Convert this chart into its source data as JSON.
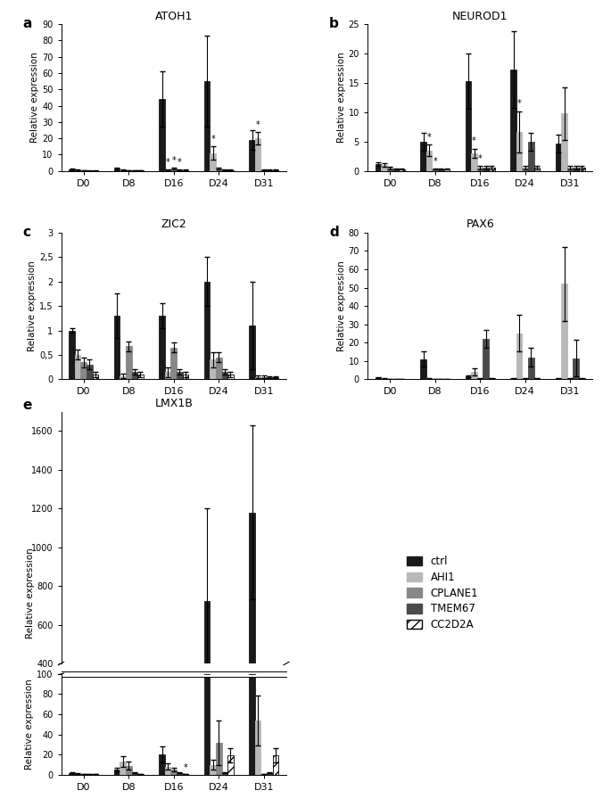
{
  "panels": {
    "a": {
      "title": "ATOH1",
      "ylim": [
        0,
        90
      ],
      "yticks": [
        0,
        10,
        20,
        30,
        40,
        50,
        60,
        70,
        80,
        90
      ],
      "timepoints": [
        "D0",
        "D8",
        "D16",
        "D24",
        "D31"
      ],
      "bars": {
        "ctrl": [
          1.0,
          1.5,
          44.0,
          55.0,
          19.0
        ],
        "AHI1": [
          0.5,
          0.5,
          0.5,
          11.0,
          20.0
        ],
        "CPLANE1": [
          0.3,
          0.5,
          1.5,
          1.5,
          0.5
        ],
        "TMEM67": [
          0.2,
          0.3,
          0.5,
          0.5,
          0.5
        ],
        "CC2D2A": [
          0.2,
          0.3,
          0.5,
          0.5,
          0.5
        ]
      },
      "errors": {
        "ctrl": [
          0.3,
          0.5,
          17.0,
          28.0,
          6.0
        ],
        "AHI1": [
          0.2,
          0.2,
          0.3,
          4.0,
          4.0
        ],
        "CPLANE1": [
          0.1,
          0.1,
          0.3,
          0.3,
          0.2
        ],
        "TMEM67": [
          0.1,
          0.1,
          0.2,
          0.2,
          0.2
        ],
        "CC2D2A": [
          0.1,
          0.1,
          0.2,
          0.2,
          0.2
        ]
      },
      "stars": {
        "AHI1": [
          false,
          false,
          true,
          true,
          true
        ],
        "CPLANE1": [
          false,
          false,
          true,
          false,
          false
        ],
        "TMEM67": [
          false,
          false,
          true,
          false,
          false
        ],
        "CC2D2A": [
          false,
          false,
          false,
          false,
          false
        ]
      }
    },
    "b": {
      "title": "NEUROD1",
      "ylim": [
        0,
        25
      ],
      "yticks": [
        0,
        5,
        10,
        15,
        20,
        25
      ],
      "timepoints": [
        "D0",
        "D8",
        "D16",
        "D24",
        "D31"
      ],
      "bars": {
        "ctrl": [
          1.2,
          5.0,
          15.3,
          17.3,
          4.7
        ],
        "AHI1": [
          1.0,
          3.5,
          3.0,
          6.7,
          9.8
        ],
        "CPLANE1": [
          0.5,
          0.3,
          0.5,
          0.5,
          0.5
        ],
        "TMEM67": [
          0.3,
          0.3,
          0.5,
          5.0,
          0.5
        ],
        "CC2D2A": [
          0.3,
          0.3,
          0.5,
          0.5,
          0.5
        ]
      },
      "errors": {
        "ctrl": [
          0.3,
          1.5,
          4.7,
          6.5,
          1.5
        ],
        "AHI1": [
          0.3,
          1.0,
          0.8,
          3.5,
          4.5
        ],
        "CPLANE1": [
          0.2,
          0.1,
          0.3,
          0.3,
          0.3
        ],
        "TMEM67": [
          0.1,
          0.1,
          0.3,
          1.5,
          0.3
        ],
        "CC2D2A": [
          0.1,
          0.1,
          0.3,
          0.3,
          0.3
        ]
      },
      "stars": {
        "AHI1": [
          false,
          true,
          true,
          true,
          false
        ],
        "CPLANE1": [
          false,
          true,
          true,
          false,
          false
        ],
        "TMEM67": [
          false,
          false,
          false,
          false,
          false
        ],
        "CC2D2A": [
          false,
          false,
          false,
          false,
          false
        ]
      }
    },
    "c": {
      "title": "ZIC2",
      "ylim": [
        0,
        3
      ],
      "yticks": [
        0,
        0.5,
        1.0,
        1.5,
        2.0,
        2.5,
        3.0
      ],
      "ytick_labels": [
        "0",
        "0,5",
        "1",
        "1,5",
        "2",
        "2,5",
        "3"
      ],
      "timepoints": [
        "D0",
        "D8",
        "D16",
        "D24",
        "D31"
      ],
      "bars": {
        "ctrl": [
          1.0,
          1.3,
          1.3,
          2.0,
          1.1
        ],
        "AHI1": [
          0.5,
          0.07,
          0.15,
          0.4,
          0.05
        ],
        "CPLANE1": [
          0.35,
          0.68,
          0.65,
          0.45,
          0.05
        ],
        "TMEM67": [
          0.3,
          0.15,
          0.15,
          0.15,
          0.05
        ],
        "CC2D2A": [
          0.1,
          0.1,
          0.1,
          0.1,
          0.05
        ]
      },
      "errors": {
        "ctrl": [
          0.05,
          0.45,
          0.25,
          0.5,
          0.9
        ],
        "AHI1": [
          0.1,
          0.05,
          0.1,
          0.15,
          0.03
        ],
        "CPLANE1": [
          0.1,
          0.1,
          0.1,
          0.1,
          0.03
        ],
        "TMEM67": [
          0.1,
          0.05,
          0.05,
          0.05,
          0.02
        ],
        "CC2D2A": [
          0.05,
          0.05,
          0.05,
          0.05,
          0.02
        ]
      },
      "stars": {}
    },
    "d": {
      "title": "PAX6",
      "ylim": [
        0,
        80
      ],
      "yticks": [
        0,
        10,
        20,
        30,
        40,
        50,
        60,
        70,
        80
      ],
      "timepoints": [
        "D0",
        "D8",
        "D16",
        "D24",
        "D31"
      ],
      "bars": {
        "ctrl": [
          1.0,
          11.0,
          1.5,
          0.5,
          0.5
        ],
        "AHI1": [
          0.5,
          0.5,
          4.0,
          25.0,
          52.0
        ],
        "CPLANE1": [
          0.2,
          0.2,
          0.5,
          0.5,
          0.5
        ],
        "TMEM67": [
          0.2,
          0.2,
          22.0,
          12.0,
          11.5
        ],
        "CC2D2A": [
          0.2,
          0.2,
          0.5,
          0.5,
          0.5
        ]
      },
      "errors": {
        "ctrl": [
          0.3,
          4.0,
          0.5,
          0.2,
          0.2
        ],
        "AHI1": [
          0.2,
          0.2,
          2.0,
          10.0,
          20.0
        ],
        "CPLANE1": [
          0.1,
          0.1,
          0.2,
          0.2,
          0.2
        ],
        "TMEM67": [
          0.1,
          0.1,
          5.0,
          5.0,
          10.0
        ],
        "CC2D2A": [
          0.1,
          0.1,
          0.2,
          0.2,
          0.2
        ]
      },
      "stars": {}
    },
    "e": {
      "title": "LMX1B",
      "timepoints": [
        "D0",
        "D8",
        "D16",
        "D24",
        "D31"
      ],
      "ylim_low": [
        0,
        100
      ],
      "yticks_low": [
        0,
        20,
        40,
        60,
        80,
        100
      ],
      "ylim_high": [
        400,
        1700
      ],
      "yticks_high": [
        400,
        600,
        800,
        1000,
        1200,
        1400,
        1600
      ],
      "bars": {
        "ctrl": [
          2.0,
          5.0,
          20.0,
          720.0,
          1180.0
        ],
        "AHI1": [
          1.0,
          13.0,
          8.0,
          10.0,
          54.0
        ],
        "CPLANE1": [
          0.5,
          9.0,
          5.0,
          32.0,
          0.5
        ],
        "TMEM67": [
          0.5,
          2.0,
          2.0,
          2.0,
          2.0
        ],
        "CC2D2A": [
          0.5,
          0.5,
          0.5,
          19.0,
          19.0
        ]
      },
      "errors": {
        "ctrl": [
          0.5,
          1.5,
          8.0,
          480.0,
          450.0
        ],
        "AHI1": [
          0.3,
          5.0,
          3.0,
          5.0,
          25.0
        ],
        "CPLANE1": [
          0.2,
          4.0,
          2.0,
          22.0,
          0.2
        ],
        "TMEM67": [
          0.2,
          0.5,
          0.5,
          0.5,
          0.5
        ],
        "CC2D2A": [
          0.2,
          0.2,
          0.2,
          7.0,
          7.0
        ]
      },
      "stars": {
        "CC2D2A": [
          false,
          false,
          true,
          false,
          false
        ]
      }
    }
  },
  "series_order": [
    "ctrl",
    "AHI1",
    "CPLANE1",
    "TMEM67",
    "CC2D2A"
  ],
  "colors": {
    "ctrl": "#1a1a1a",
    "AHI1": "#b8b8b8",
    "CPLANE1": "#888888",
    "TMEM67": "#4a4a4a",
    "CC2D2A": "#ffffff"
  },
  "edge_colors": {
    "ctrl": "#1a1a1a",
    "AHI1": "#b8b8b8",
    "CPLANE1": "#888888",
    "TMEM67": "#4a4a4a",
    "CC2D2A": "#000000"
  },
  "hatch_patterns": {
    "ctrl": "",
    "AHI1": "",
    "CPLANE1": "",
    "TMEM67": "",
    "CC2D2A": "///"
  },
  "bar_width": 0.13
}
